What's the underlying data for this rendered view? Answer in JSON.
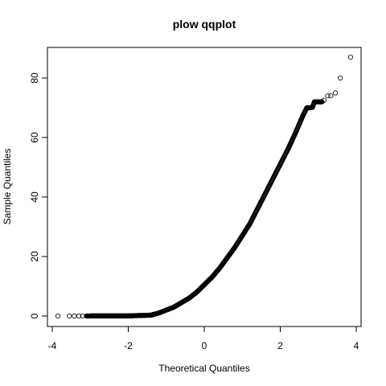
{
  "chart_data": {
    "type": "scatter",
    "title": "plow qqplot",
    "xlabel": "Theoretical Quantiles",
    "ylabel": "Sample Quantiles",
    "xlim": [
      -3.9,
      4.0
    ],
    "ylim": [
      -2.5,
      90
    ],
    "x_ticks": [
      -4,
      -2,
      0,
      2,
      4
    ],
    "y_ticks": [
      0,
      20,
      40,
      60,
      80
    ],
    "curve_points": [
      [
        -3.85,
        0
      ],
      [
        -2.0,
        0.05
      ],
      [
        -1.4,
        0.3
      ],
      [
        -1.2,
        1.0
      ],
      [
        -1.0,
        2.0
      ],
      [
        -0.8,
        3.0
      ],
      [
        -0.6,
        4.5
      ],
      [
        -0.4,
        6.0
      ],
      [
        -0.2,
        8.0
      ],
      [
        0.0,
        10.5
      ],
      [
        0.2,
        13.0
      ],
      [
        0.4,
        16.0
      ],
      [
        0.6,
        19.5
      ],
      [
        0.8,
        23.0
      ],
      [
        1.0,
        27.0
      ],
      [
        1.2,
        31.0
      ],
      [
        1.4,
        36.0
      ],
      [
        1.6,
        41.0
      ],
      [
        1.8,
        46.0
      ],
      [
        2.0,
        51.0
      ],
      [
        2.2,
        56.0
      ],
      [
        2.4,
        61.5
      ],
      [
        2.55,
        66.0
      ],
      [
        2.62,
        68.0
      ],
      [
        2.7,
        70.0
      ],
      [
        2.8,
        70.0
      ],
      [
        2.85,
        70.2
      ],
      [
        2.9,
        72.0
      ],
      [
        3.1,
        72.0
      ]
    ],
    "tail_points": [
      [
        -3.85,
        0
      ],
      [
        -3.55,
        0
      ],
      [
        -3.42,
        0
      ],
      [
        -3.3,
        0
      ],
      [
        -3.2,
        0.02
      ],
      [
        3.15,
        72.5
      ],
      [
        3.25,
        74.0
      ],
      [
        3.33,
        74.0
      ],
      [
        3.45,
        75.0
      ],
      [
        3.58,
        80.0
      ],
      [
        3.85,
        87.0
      ]
    ]
  }
}
